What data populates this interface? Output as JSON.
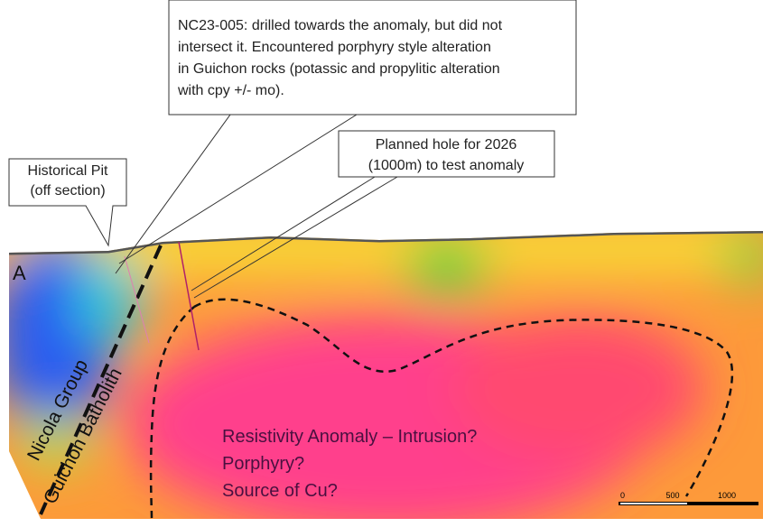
{
  "section": {
    "label_a": "A",
    "unit_left": "Nicola Group",
    "unit_right": "Guichon Batholith"
  },
  "callouts": [
    {
      "lines": [
        "NC23-005: drilled towards the anomaly, but did not",
        "intersect it. Encountered porphyry style alteration",
        "in Guichon rocks (potassic and propylitic alteration",
        "with cpy +/- mo)."
      ]
    },
    {
      "lines": [
        "Planned hole for 2026",
        "(1000m) to test anomaly"
      ]
    },
    {
      "lines": [
        "Historical Pit",
        "(off section)"
      ]
    }
  ],
  "anomaly_label": {
    "lines": [
      "Resistivity Anomaly – Intrusion?",
      "Porphyry?",
      "Source of Cu?"
    ]
  },
  "scale_bar": {
    "labels": [
      "0",
      "500",
      "1000"
    ]
  }
}
